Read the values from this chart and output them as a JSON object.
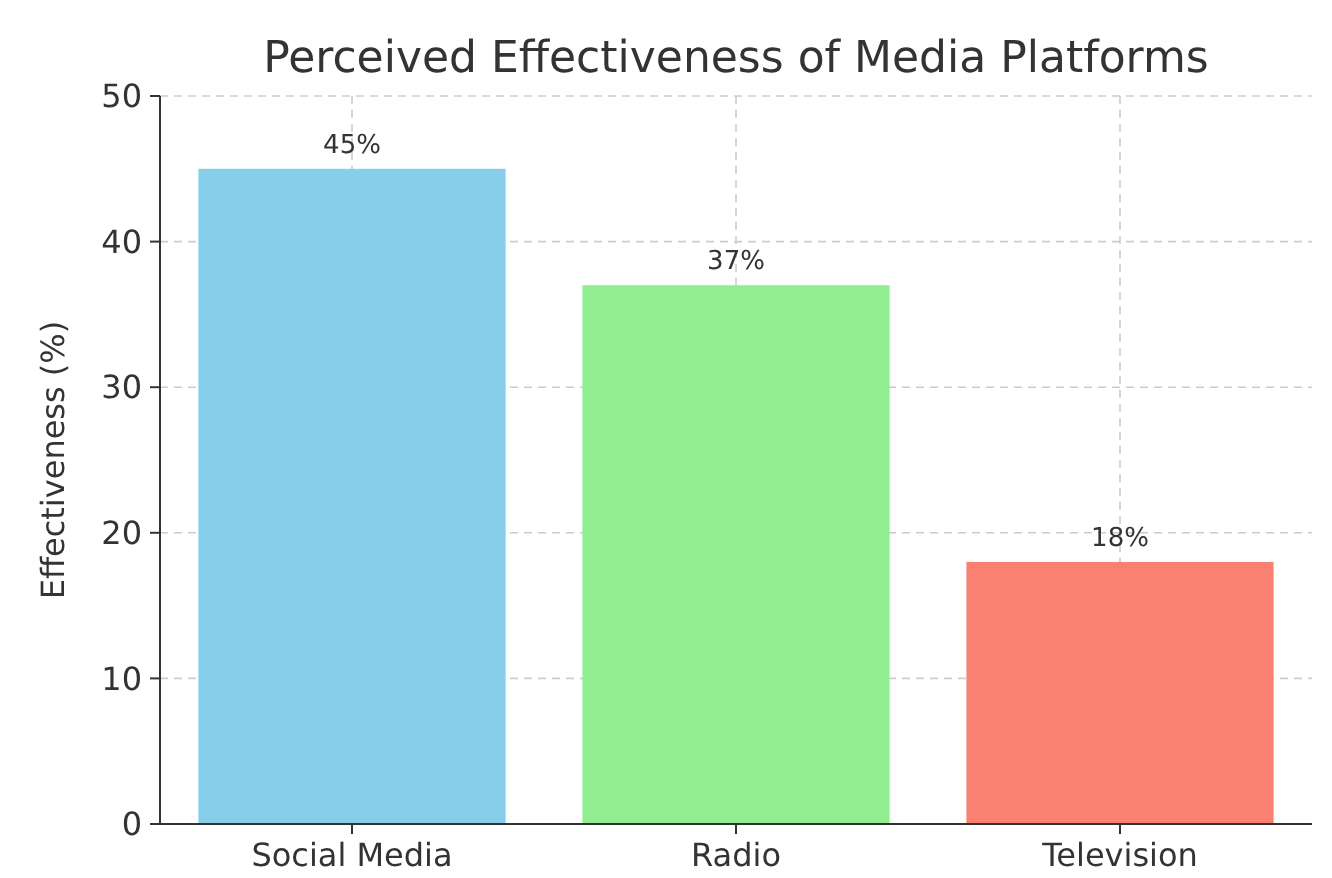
{
  "chart_data": {
    "type": "bar",
    "title": "Perceived Effectiveness of Media Platforms",
    "ylabel": "Effectiveness (%)",
    "categories": [
      "Social Media",
      "Radio",
      "Television"
    ],
    "values": [
      45,
      37,
      18
    ],
    "colors": [
      "#87ceeb",
      "#90ee90",
      "#fa8072"
    ],
    "value_labels": [
      "45%",
      "37%",
      "18%"
    ],
    "ylim": [
      0,
      50
    ],
    "yticks": [
      0,
      10,
      20,
      30,
      40,
      50
    ],
    "grid": true
  }
}
